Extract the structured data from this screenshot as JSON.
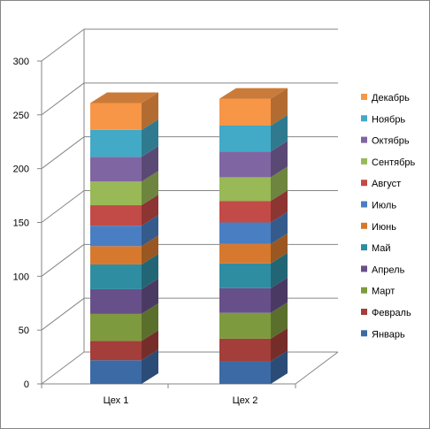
{
  "chart_data": {
    "type": "bar",
    "stacked": true,
    "style": "3d-stacked-column",
    "categories": [
      "Цех 1",
      "Цех 2"
    ],
    "ylim": [
      0,
      300
    ],
    "yticks": [
      0,
      50,
      100,
      150,
      200,
      250,
      300
    ],
    "grid": true,
    "legend_position": "right",
    "series": [
      {
        "name": "Январь",
        "color": "#3C6AA4",
        "values": [
          22,
          21
        ]
      },
      {
        "name": "Февраль",
        "color": "#A33E3A",
        "values": [
          18,
          21
        ]
      },
      {
        "name": "Март",
        "color": "#7E9A3E",
        "values": [
          25,
          24
        ]
      },
      {
        "name": "Апрель",
        "color": "#67508A",
        "values": [
          23,
          23
        ]
      },
      {
        "name": "Май",
        "color": "#2F8DA2",
        "values": [
          23,
          23
        ]
      },
      {
        "name": "Июнь",
        "color": "#D6792E",
        "values": [
          17,
          18
        ]
      },
      {
        "name": "Июль",
        "color": "#4A7EC3",
        "values": [
          19,
          20
        ]
      },
      {
        "name": "Август",
        "color": "#C24A47",
        "values": [
          19,
          20
        ]
      },
      {
        "name": "Сентябрь",
        "color": "#98B956",
        "values": [
          22,
          22
        ]
      },
      {
        "name": "Октябрь",
        "color": "#7F66A2",
        "values": [
          23,
          24
        ]
      },
      {
        "name": "Ноябрь",
        "color": "#42A9C6",
        "values": [
          25,
          24
        ]
      },
      {
        "name": "Декабрь",
        "color": "#F79646",
        "values": [
          25,
          25
        ]
      }
    ]
  }
}
